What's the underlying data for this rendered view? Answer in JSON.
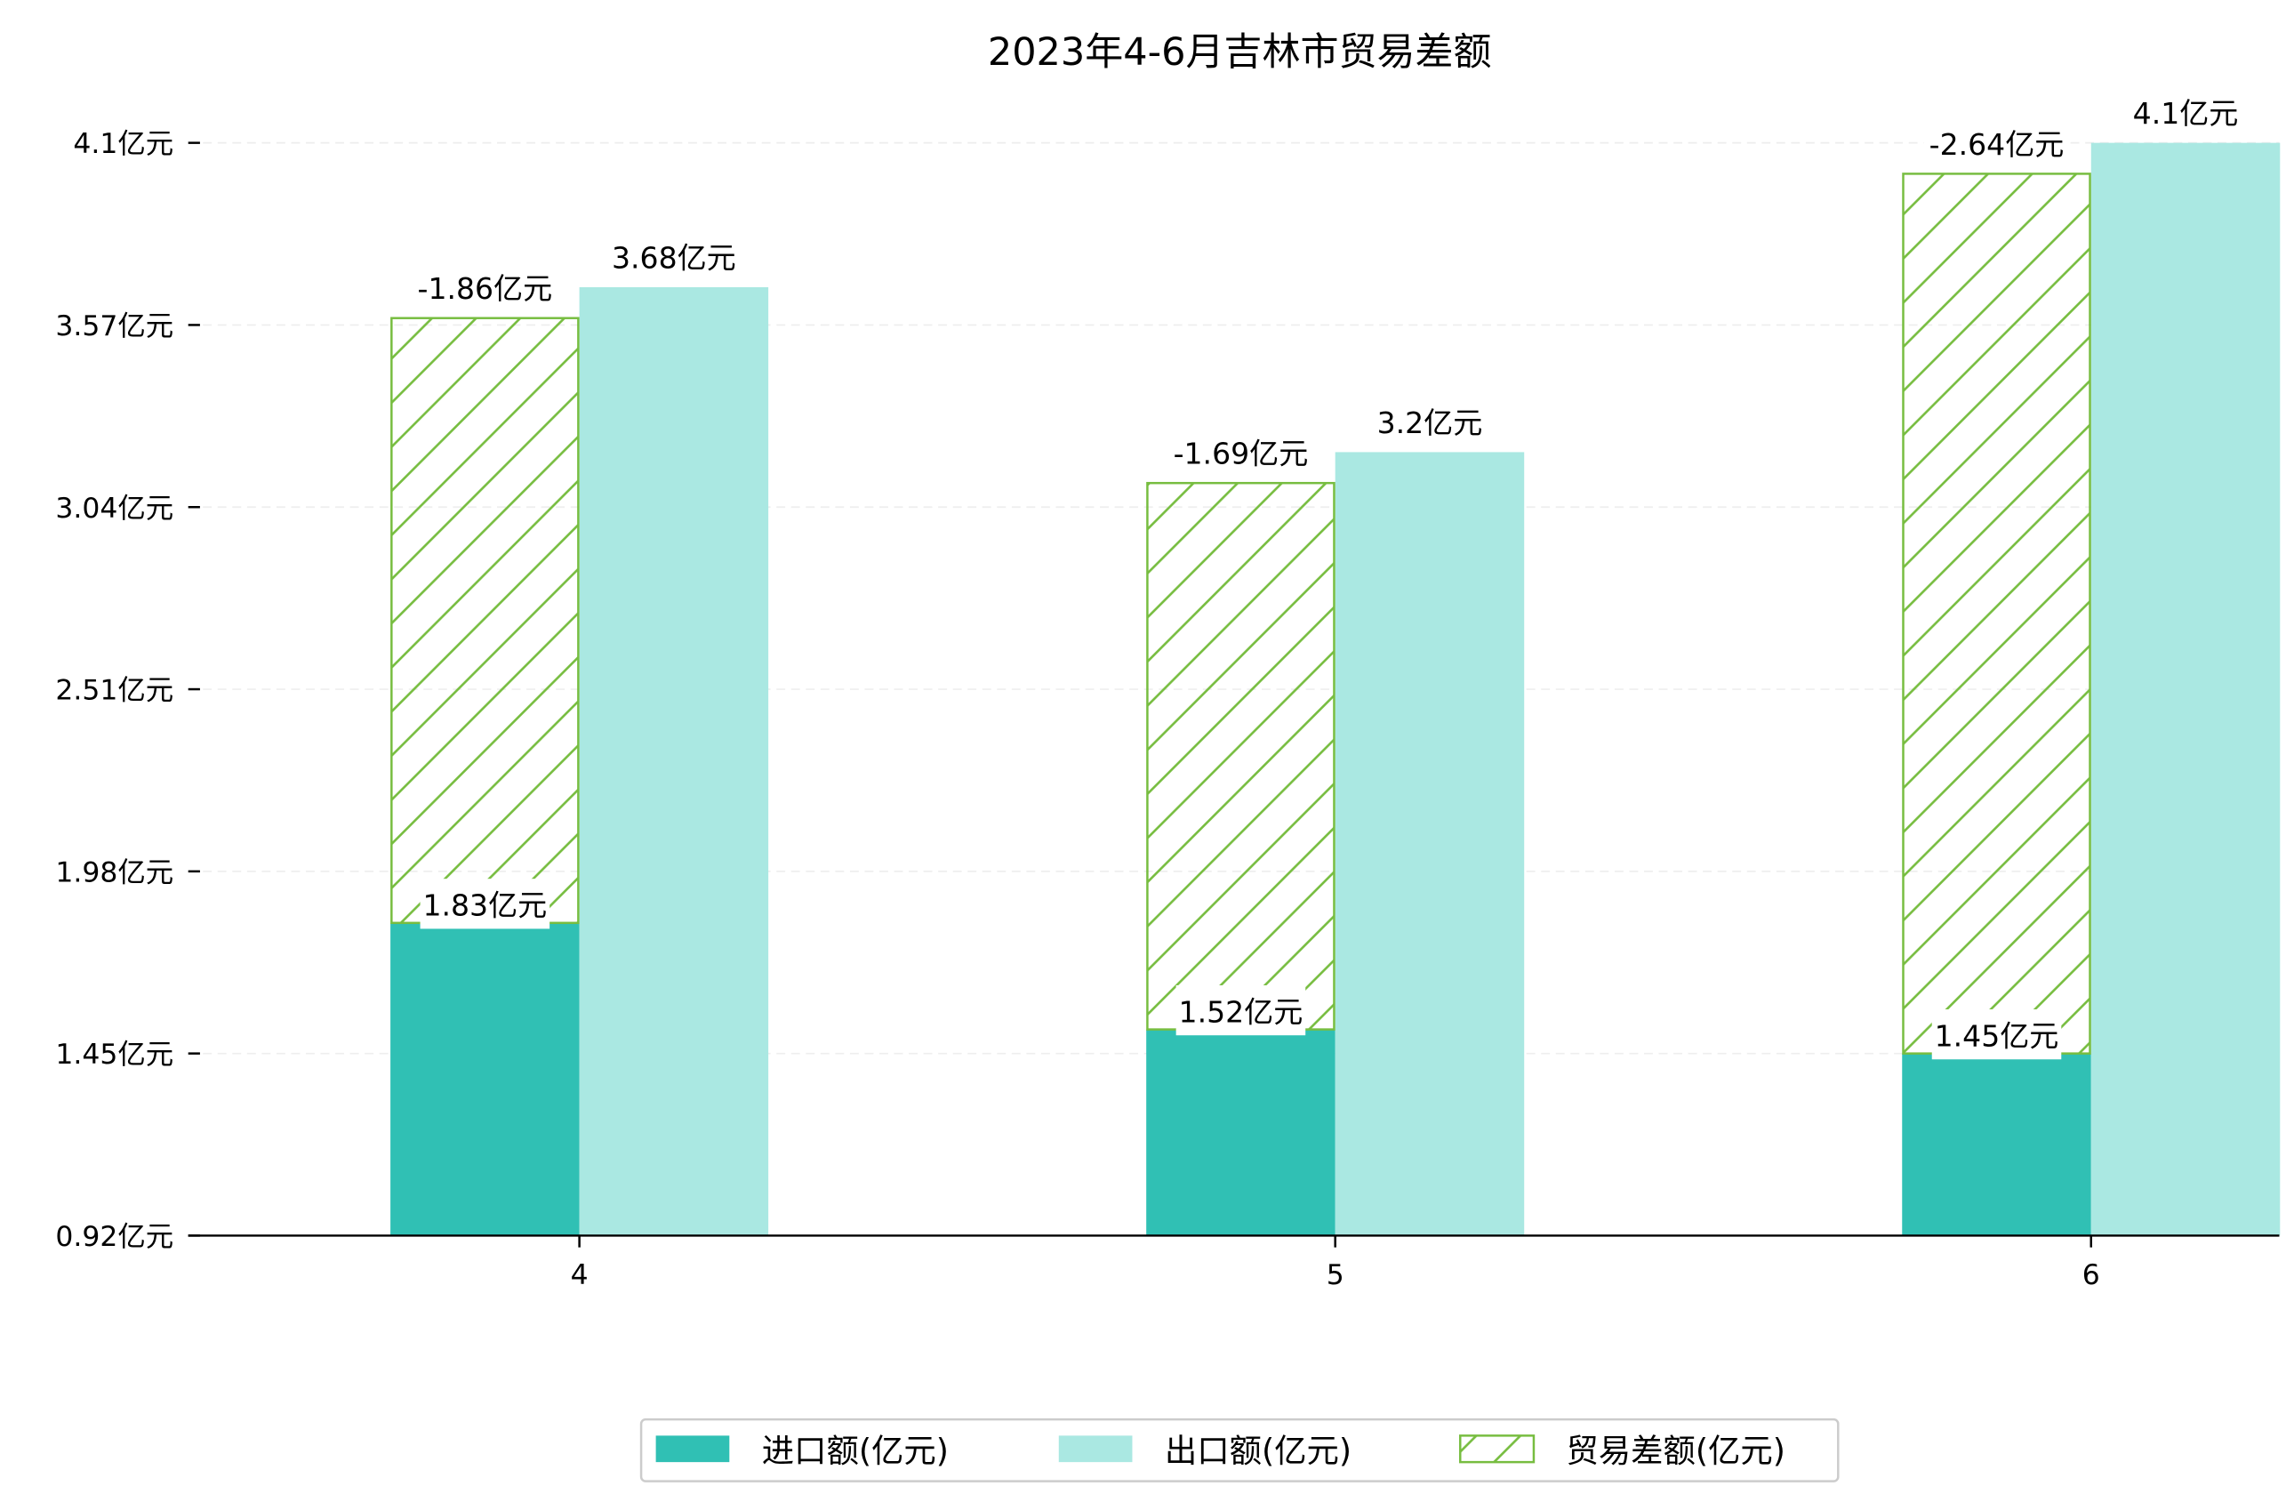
{
  "chart_data": {
    "type": "bar",
    "title": "2023年4-6月吉林市贸易差额",
    "xlabel": "",
    "ylabel": "",
    "categories": [
      "4",
      "5",
      "6"
    ],
    "ylim": [
      0.92,
      4.1
    ],
    "yticks": [
      "0.92亿元",
      "1.45亿元",
      "1.98亿元",
      "2.51亿元",
      "3.04亿元",
      "3.57亿元",
      "4.1亿元"
    ],
    "ytick_values": [
      0.92,
      1.45,
      1.98,
      2.51,
      3.04,
      3.57,
      4.1
    ],
    "grid": "y-dashed",
    "legend_position": "bottom-center",
    "series": [
      {
        "name": "进口额(亿元)",
        "values": [
          1.83,
          1.52,
          1.45
        ],
        "labels": [
          "1.83亿元",
          "1.52亿元",
          "1.45亿元"
        ],
        "color": "#30c0b4"
      },
      {
        "name": "出口额(亿元)",
        "values": [
          3.68,
          3.2,
          4.1
        ],
        "labels": [
          "3.68亿元",
          "3.2亿元",
          "4.1亿元"
        ],
        "color": "#aae8e2"
      },
      {
        "name": "贸易差额(亿元)",
        "values": [
          -1.86,
          -1.69,
          -2.64
        ],
        "labels": [
          "-1.86亿元",
          "-1.69亿元",
          "-2.64亿元"
        ],
        "color": "#77bd40"
      }
    ]
  }
}
